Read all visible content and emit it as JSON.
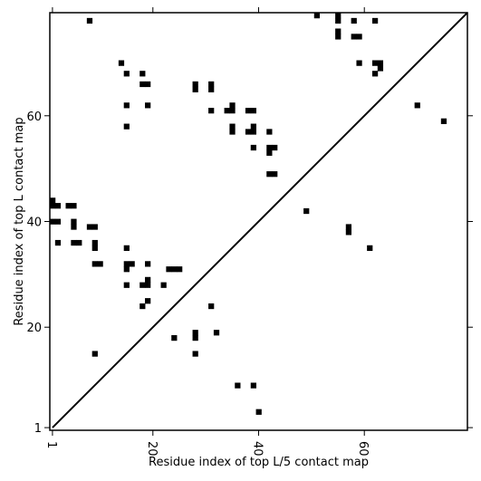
{
  "chart_data": {
    "type": "heatmap",
    "xlabel": "Residue index of top L/5 contact map",
    "ylabel": "Residue index of top L contact map",
    "xlim": [
      0.5,
      79.5
    ],
    "ylim": [
      0.5,
      79.5
    ],
    "x_ticks": [
      1,
      20,
      40,
      60
    ],
    "y_ticks": [
      1,
      20,
      40,
      60
    ],
    "diagonal": true,
    "cell_color": "#000000",
    "cells": [
      [
        8,
        78
      ],
      [
        51,
        79
      ],
      [
        55,
        79
      ],
      [
        55,
        78
      ],
      [
        58,
        78
      ],
      [
        62,
        78
      ],
      [
        55,
        76
      ],
      [
        55,
        75
      ],
      [
        58,
        75
      ],
      [
        59,
        75
      ],
      [
        14,
        70
      ],
      [
        59,
        70
      ],
      [
        62,
        70
      ],
      [
        63,
        70
      ],
      [
        63,
        69
      ],
      [
        15,
        68
      ],
      [
        18,
        68
      ],
      [
        62,
        68
      ],
      [
        18,
        66
      ],
      [
        19,
        66
      ],
      [
        28,
        66
      ],
      [
        31,
        66
      ],
      [
        28,
        65
      ],
      [
        31,
        65
      ],
      [
        15,
        62
      ],
      [
        19,
        62
      ],
      [
        35,
        62
      ],
      [
        70,
        62
      ],
      [
        31,
        61
      ],
      [
        34,
        61
      ],
      [
        35,
        61
      ],
      [
        38,
        61
      ],
      [
        39,
        61
      ],
      [
        75,
        59
      ],
      [
        15,
        58
      ],
      [
        35,
        58
      ],
      [
        39,
        58
      ],
      [
        35,
        57
      ],
      [
        38,
        57
      ],
      [
        39,
        57
      ],
      [
        42,
        57
      ],
      [
        39,
        54
      ],
      [
        42,
        54
      ],
      [
        43,
        54
      ],
      [
        42,
        53
      ],
      [
        42,
        49
      ],
      [
        43,
        49
      ],
      [
        1,
        44
      ],
      [
        1,
        43
      ],
      [
        2,
        43
      ],
      [
        4,
        43
      ],
      [
        5,
        43
      ],
      [
        49,
        42
      ],
      [
        1,
        40
      ],
      [
        2,
        40
      ],
      [
        5,
        40
      ],
      [
        5,
        39
      ],
      [
        8,
        39
      ],
      [
        9,
        39
      ],
      [
        57,
        39
      ],
      [
        57,
        38
      ],
      [
        2,
        36
      ],
      [
        5,
        36
      ],
      [
        6,
        36
      ],
      [
        9,
        36
      ],
      [
        9,
        35
      ],
      [
        15,
        35
      ],
      [
        61,
        35
      ],
      [
        9,
        32
      ],
      [
        10,
        32
      ],
      [
        15,
        32
      ],
      [
        16,
        32
      ],
      [
        19,
        32
      ],
      [
        15,
        31
      ],
      [
        23,
        31
      ],
      [
        24,
        31
      ],
      [
        25,
        31
      ],
      [
        19,
        29
      ],
      [
        15,
        28
      ],
      [
        18,
        28
      ],
      [
        19,
        28
      ],
      [
        22,
        28
      ],
      [
        19,
        25
      ],
      [
        18,
        24
      ],
      [
        31,
        24
      ],
      [
        28,
        19
      ],
      [
        32,
        19
      ],
      [
        24,
        18
      ],
      [
        28,
        18
      ],
      [
        9,
        15
      ],
      [
        28,
        15
      ],
      [
        36,
        9
      ],
      [
        39,
        9
      ],
      [
        40,
        4
      ]
    ]
  }
}
